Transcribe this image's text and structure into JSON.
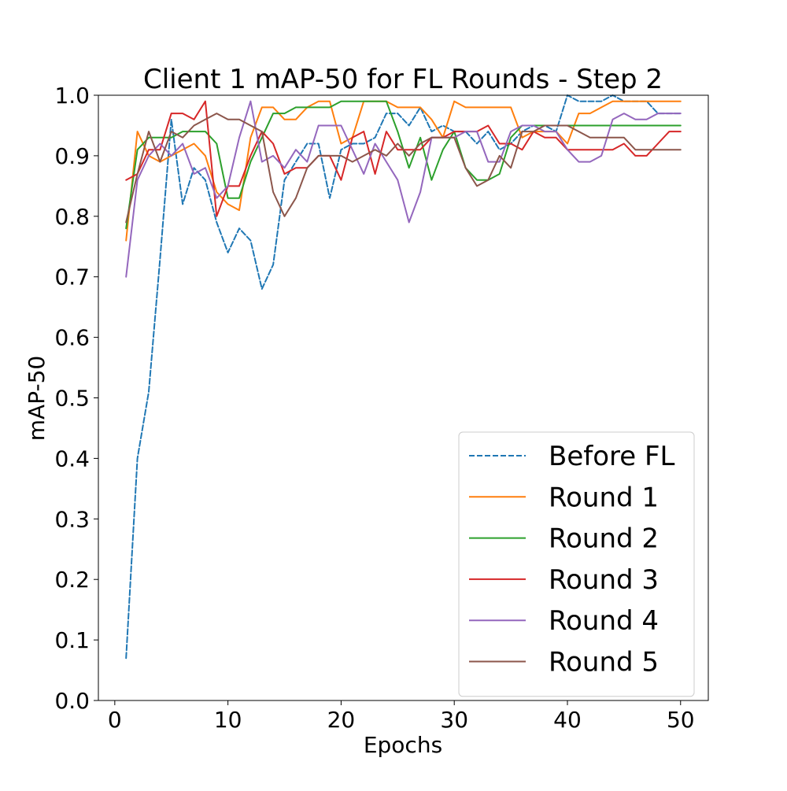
{
  "chart_data": {
    "type": "line",
    "title": "Client 1 mAP-50 for FL Rounds - Step 2",
    "xlabel": "Epochs",
    "ylabel": "mAP-50",
    "xlim": [
      -1.45,
      52.45
    ],
    "ylim": [
      0.0,
      1.0
    ],
    "x_ticks": [
      0,
      10,
      20,
      30,
      40,
      50
    ],
    "y_ticks": [
      0.0,
      0.1,
      0.2,
      0.3,
      0.4,
      0.5,
      0.6,
      0.7,
      0.8,
      0.9,
      1.0
    ],
    "grid": false,
    "legend_position": "lower right",
    "x": [
      1,
      2,
      3,
      4,
      5,
      6,
      7,
      8,
      9,
      10,
      11,
      12,
      13,
      14,
      15,
      16,
      17,
      18,
      19,
      20,
      21,
      22,
      23,
      24,
      25,
      26,
      27,
      28,
      29,
      30,
      31,
      32,
      33,
      34,
      35,
      36,
      37,
      38,
      39,
      40,
      41,
      42,
      43,
      44,
      45,
      46,
      47,
      48,
      49,
      50
    ],
    "series": [
      {
        "name": "Before FL",
        "color": "#1f77b4",
        "dashed": true,
        "values": [
          0.07,
          0.4,
          0.51,
          0.73,
          0.96,
          0.82,
          0.88,
          0.86,
          0.79,
          0.74,
          0.78,
          0.76,
          0.68,
          0.72,
          0.86,
          0.89,
          0.92,
          0.92,
          0.83,
          0.91,
          0.92,
          0.92,
          0.93,
          0.97,
          0.97,
          0.95,
          0.98,
          0.94,
          0.95,
          0.94,
          0.94,
          0.92,
          0.94,
          0.91,
          0.92,
          0.94,
          0.95,
          0.95,
          0.94,
          1.0,
          0.99,
          0.99,
          0.99,
          1.0,
          0.99,
          0.99,
          0.99,
          0.97,
          0.97,
          0.97
        ]
      },
      {
        "name": "Round 1",
        "color": "#ff7f0e",
        "dashed": false,
        "values": [
          0.76,
          0.94,
          0.9,
          0.89,
          0.9,
          0.91,
          0.92,
          0.9,
          0.84,
          0.82,
          0.81,
          0.93,
          0.98,
          0.98,
          0.96,
          0.96,
          0.98,
          0.99,
          0.99,
          0.92,
          0.93,
          0.99,
          0.99,
          0.99,
          0.98,
          0.98,
          0.98,
          0.96,
          0.93,
          0.99,
          0.98,
          0.98,
          0.98,
          0.98,
          0.98,
          0.93,
          0.94,
          0.94,
          0.94,
          0.92,
          0.97,
          0.97,
          0.98,
          0.99,
          0.99,
          0.99,
          0.99,
          0.99,
          0.99,
          0.99
        ]
      },
      {
        "name": "Round 2",
        "color": "#2ca02c",
        "dashed": false,
        "values": [
          0.78,
          0.91,
          0.93,
          0.93,
          0.93,
          0.94,
          0.94,
          0.94,
          0.92,
          0.83,
          0.83,
          0.89,
          0.93,
          0.97,
          0.97,
          0.98,
          0.98,
          0.98,
          0.98,
          0.99,
          0.99,
          0.99,
          0.99,
          0.99,
          0.94,
          0.88,
          0.93,
          0.86,
          0.91,
          0.94,
          0.88,
          0.86,
          0.86,
          0.87,
          0.93,
          0.95,
          0.95,
          0.95,
          0.95,
          0.95,
          0.95,
          0.95,
          0.95,
          0.95,
          0.95,
          0.95,
          0.95,
          0.95,
          0.95,
          0.95
        ]
      },
      {
        "name": "Round 3",
        "color": "#d62728",
        "dashed": false,
        "values": [
          0.86,
          0.87,
          0.91,
          0.91,
          0.97,
          0.97,
          0.96,
          0.99,
          0.8,
          0.85,
          0.85,
          0.9,
          0.94,
          0.92,
          0.87,
          0.88,
          0.88,
          0.9,
          0.9,
          0.86,
          0.93,
          0.94,
          0.87,
          0.94,
          0.91,
          0.91,
          0.91,
          0.93,
          0.93,
          0.94,
          0.94,
          0.94,
          0.95,
          0.92,
          0.92,
          0.91,
          0.94,
          0.93,
          0.93,
          0.91,
          0.91,
          0.91,
          0.91,
          0.91,
          0.92,
          0.9,
          0.9,
          0.92,
          0.94,
          0.94
        ]
      },
      {
        "name": "Round 4",
        "color": "#9467bd",
        "dashed": false,
        "values": [
          0.7,
          0.86,
          0.9,
          0.92,
          0.9,
          0.92,
          0.87,
          0.88,
          0.83,
          0.85,
          0.93,
          0.99,
          0.89,
          0.9,
          0.88,
          0.91,
          0.89,
          0.95,
          0.95,
          0.95,
          0.91,
          0.87,
          0.92,
          0.89,
          0.86,
          0.79,
          0.84,
          0.93,
          0.93,
          0.93,
          0.94,
          0.94,
          0.89,
          0.89,
          0.94,
          0.95,
          0.95,
          0.94,
          0.94,
          0.91,
          0.89,
          0.89,
          0.9,
          0.96,
          0.97,
          0.96,
          0.96,
          0.97,
          0.97,
          0.97
        ]
      },
      {
        "name": "Round 5",
        "color": "#8c564b",
        "dashed": false,
        "values": [
          0.79,
          0.87,
          0.94,
          0.89,
          0.94,
          0.93,
          0.95,
          0.96,
          0.97,
          0.96,
          0.96,
          0.95,
          0.94,
          0.84,
          0.8,
          0.83,
          0.88,
          0.9,
          0.9,
          0.9,
          0.89,
          0.9,
          0.91,
          0.9,
          0.92,
          0.9,
          0.92,
          0.93,
          0.93,
          0.93,
          0.88,
          0.85,
          0.86,
          0.9,
          0.88,
          0.94,
          0.94,
          0.95,
          0.95,
          0.95,
          0.94,
          0.93,
          0.93,
          0.93,
          0.93,
          0.91,
          0.91,
          0.91,
          0.91,
          0.91
        ]
      }
    ]
  }
}
